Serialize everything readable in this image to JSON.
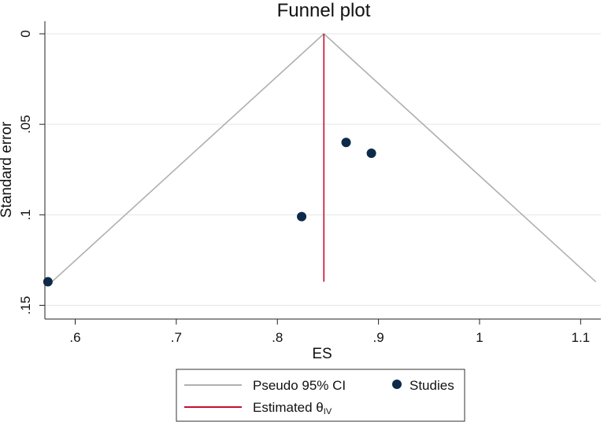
{
  "chart_data": {
    "type": "scatter",
    "title": "Funnel plot",
    "xlabel": "ES",
    "ylabel": "Standard error",
    "xlim": [
      0.57,
      1.12
    ],
    "ylim": [
      0,
      0.15
    ],
    "y_reversed": true,
    "grid": "horizontal",
    "x_ticks": [
      {
        "value": 0.6,
        "label": ".6"
      },
      {
        "value": 0.7,
        "label": ".7"
      },
      {
        "value": 0.8,
        "label": ".8"
      },
      {
        "value": 0.9,
        "label": ".9"
      },
      {
        "value": 1.0,
        "label": "1"
      },
      {
        "value": 1.1,
        "label": "1.1"
      }
    ],
    "y_ticks": [
      {
        "value": 0,
        "label": "0"
      },
      {
        "value": 0.05,
        "label": ".05"
      },
      {
        "value": 0.1,
        "label": ".1"
      },
      {
        "value": 0.15,
        "label": ".15"
      }
    ],
    "series": [
      {
        "name": "Studies",
        "kind": "scatter",
        "color": "#0d2a4a",
        "points": [
          {
            "x": 0.573,
            "y": 0.137
          },
          {
            "x": 0.824,
            "y": 0.101
          },
          {
            "x": 0.868,
            "y": 0.06
          },
          {
            "x": 0.893,
            "y": 0.066
          }
        ]
      },
      {
        "name": "Pseudo 95% CI",
        "kind": "line",
        "color": "#b0b0b0",
        "points": [
          {
            "x": 0.577,
            "y": 0.137
          },
          {
            "x": 0.846,
            "y": 0
          },
          {
            "x": 1.115,
            "y": 0.137
          }
        ]
      },
      {
        "name": "Estimated θIV",
        "kind": "line",
        "color": "#c8102e",
        "points": [
          {
            "x": 0.846,
            "y": 0
          },
          {
            "x": 0.846,
            "y": 0.137
          }
        ]
      }
    ],
    "legend": {
      "position": "bottom",
      "items": [
        {
          "label": "Pseudo 95% CI",
          "symbol": "line",
          "color": "#b0b0b0"
        },
        {
          "label": "Studies",
          "symbol": "dot",
          "color": "#0d2a4a"
        },
        {
          "label": "Estimated θIV",
          "label_main": "Estimated θ",
          "label_sub": "IV",
          "symbol": "line",
          "color": "#c8102e"
        }
      ]
    }
  }
}
